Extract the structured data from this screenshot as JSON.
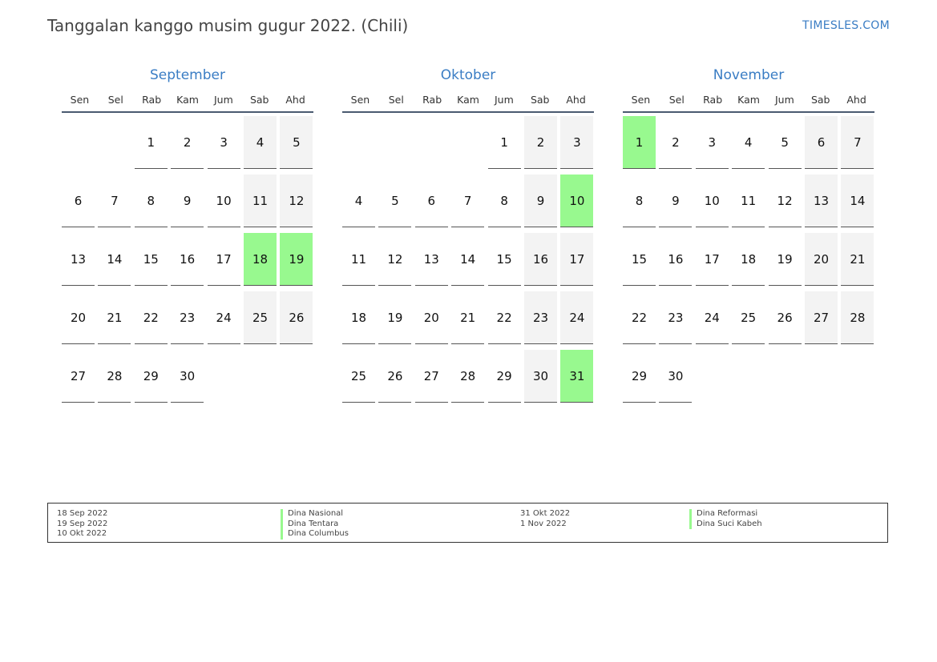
{
  "page": {
    "title": "Tanggalan kanggo musim gugur 2022. (Chili)",
    "brand": "TIMESLES.COM"
  },
  "colors": {
    "accent": "#3a7dc4",
    "holiday": "#98f98f",
    "weekend": "#f3f3f3"
  },
  "weekdays": [
    "Sen",
    "Sel",
    "Rab",
    "Kam",
    "Jum",
    "Sab",
    "Ahd"
  ],
  "months": [
    {
      "name": "September",
      "start_weekday": 3,
      "days": 30,
      "holidays": [
        18,
        19
      ]
    },
    {
      "name": "Oktober",
      "start_weekday": 5,
      "days": 31,
      "holidays": [
        10,
        31
      ]
    },
    {
      "name": "November",
      "start_weekday": 1,
      "days": 30,
      "holidays": [
        1
      ]
    }
  ],
  "legend": [
    {
      "date": "18 Sep 2022",
      "name": "Dina Nasional"
    },
    {
      "date": "19 Sep 2022",
      "name": "Dina Tentara"
    },
    {
      "date": "10 Okt 2022",
      "name": "Dina Columbus"
    },
    {
      "date": "31 Okt 2022",
      "name": "Dina Reformasi"
    },
    {
      "date": "1 Nov 2022",
      "name": "Dina Suci Kabeh"
    }
  ]
}
